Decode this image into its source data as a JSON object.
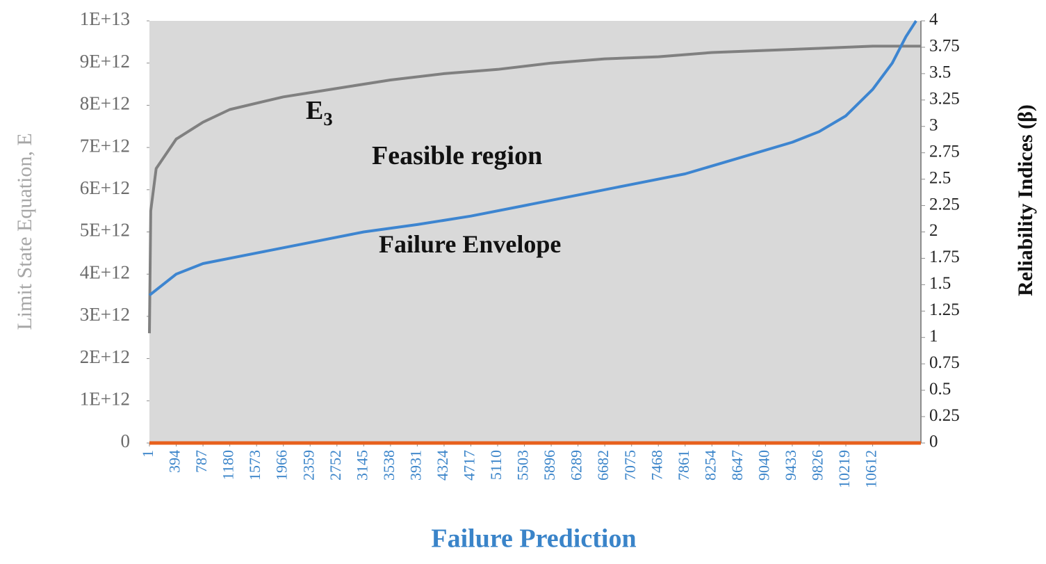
{
  "chart_data": {
    "type": "line",
    "xlabel": "Failure Prediction",
    "ylabel": "Limit State Equation, E",
    "y2label": "Reliability Indices (β)",
    "xlim": [
      1,
      11320
    ],
    "xticks": [
      1,
      394,
      787,
      1180,
      1573,
      1966,
      2359,
      2752,
      3145,
      3538,
      3931,
      4324,
      4717,
      5110,
      5503,
      5896,
      6289,
      6682,
      7075,
      7468,
      7861,
      8254,
      8647,
      9040,
      9433,
      9826,
      10219,
      10612
    ],
    "ylim": [
      0,
      10000000000000
    ],
    "yticks": [
      0,
      {
        "value": 1000000000000,
        "label": "1E+12"
      },
      {
        "value": 2000000000000,
        "label": "2E+12"
      },
      {
        "value": 3000000000000,
        "label": "3E+12"
      },
      {
        "value": 4000000000000,
        "label": "4E+12"
      },
      {
        "value": 5000000000000,
        "label": "5E+12"
      },
      {
        "value": 6000000000000,
        "label": "6E+12"
      },
      {
        "value": 7000000000000,
        "label": "7E+12"
      },
      {
        "value": 8000000000000,
        "label": "8E+12"
      },
      {
        "value": 9000000000000,
        "label": "9E+12"
      },
      {
        "value": 10000000000000,
        "label": "1E+13"
      }
    ],
    "y2lim": [
      0,
      4
    ],
    "y2ticks": [
      0,
      0.25,
      0.5,
      0.75,
      1,
      1.25,
      1.5,
      1.75,
      2,
      2.25,
      2.5,
      2.75,
      3,
      3.25,
      3.5,
      3.75,
      4
    ],
    "plot_background": "#d9d9d9",
    "series": [
      {
        "color": "#808080",
        "x": [
          1,
          20,
          100,
          394,
          787,
          1180,
          1966,
          2752,
          3538,
          4324,
          5110,
          5896,
          6682,
          7468,
          8254,
          9040,
          9826,
          10612,
          11320
        ],
        "values": [
          2600000000000,
          5500000000000,
          6500000000000,
          7200000000000,
          7600000000000,
          7900000000000,
          8200000000000,
          8400000000000,
          8600000000000,
          8750000000000,
          8850000000000,
          9000000000000,
          9100000000000,
          9150000000000,
          9250000000000,
          9300000000000,
          9350000000000,
          9400000000000,
          9400000000000
        ]
      },
      {
        "color": "#3d85d0",
        "axis": "y2",
        "x": [
          1,
          394,
          787,
          1573,
          2359,
          3145,
          3931,
          4717,
          5503,
          6289,
          7075,
          7861,
          8647,
          9433,
          9826,
          10219,
          10612,
          10900,
          11100,
          11250
        ],
        "values": [
          1.4,
          1.6,
          1.7,
          1.8,
          1.9,
          2.0,
          2.07,
          2.15,
          2.25,
          2.35,
          2.45,
          2.55,
          2.7,
          2.85,
          2.95,
          3.1,
          3.35,
          3.6,
          3.85,
          4.0
        ]
      },
      {
        "color": "#e8601c",
        "x": [
          1,
          11320
        ],
        "values": [
          0,
          0
        ]
      }
    ],
    "annotations": [
      {
        "text": "E",
        "sub": "3"
      },
      {
        "text": "Feasible region"
      },
      {
        "text": "Failure Envelope"
      }
    ]
  }
}
